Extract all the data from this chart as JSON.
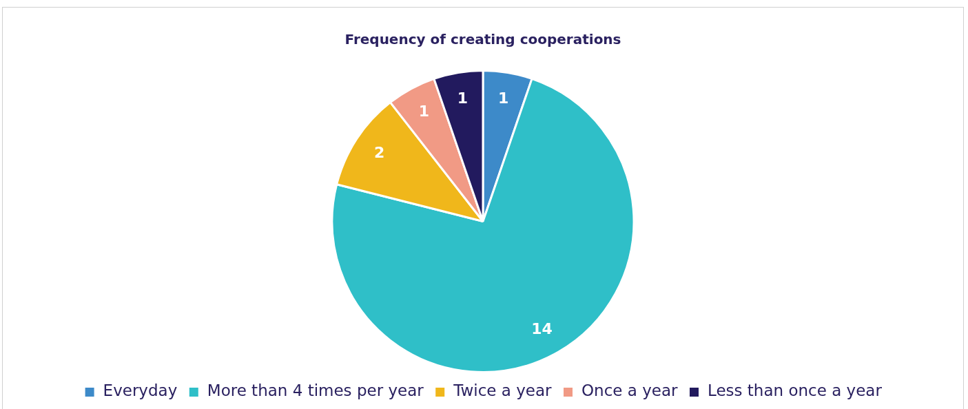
{
  "chart_data": {
    "type": "pie",
    "title": "Frequency of creating cooperations",
    "categories": [
      "Everyday",
      "More than 4 times per year",
      "Twice a year",
      "Once a year",
      "Less than once a year"
    ],
    "values": [
      1,
      14,
      2,
      1,
      1
    ],
    "colors": [
      "#3d8ac9",
      "#2fbfc8",
      "#f0b71b",
      "#f19a85",
      "#221a5e"
    ],
    "data_labels": true,
    "legend": "bottom"
  }
}
